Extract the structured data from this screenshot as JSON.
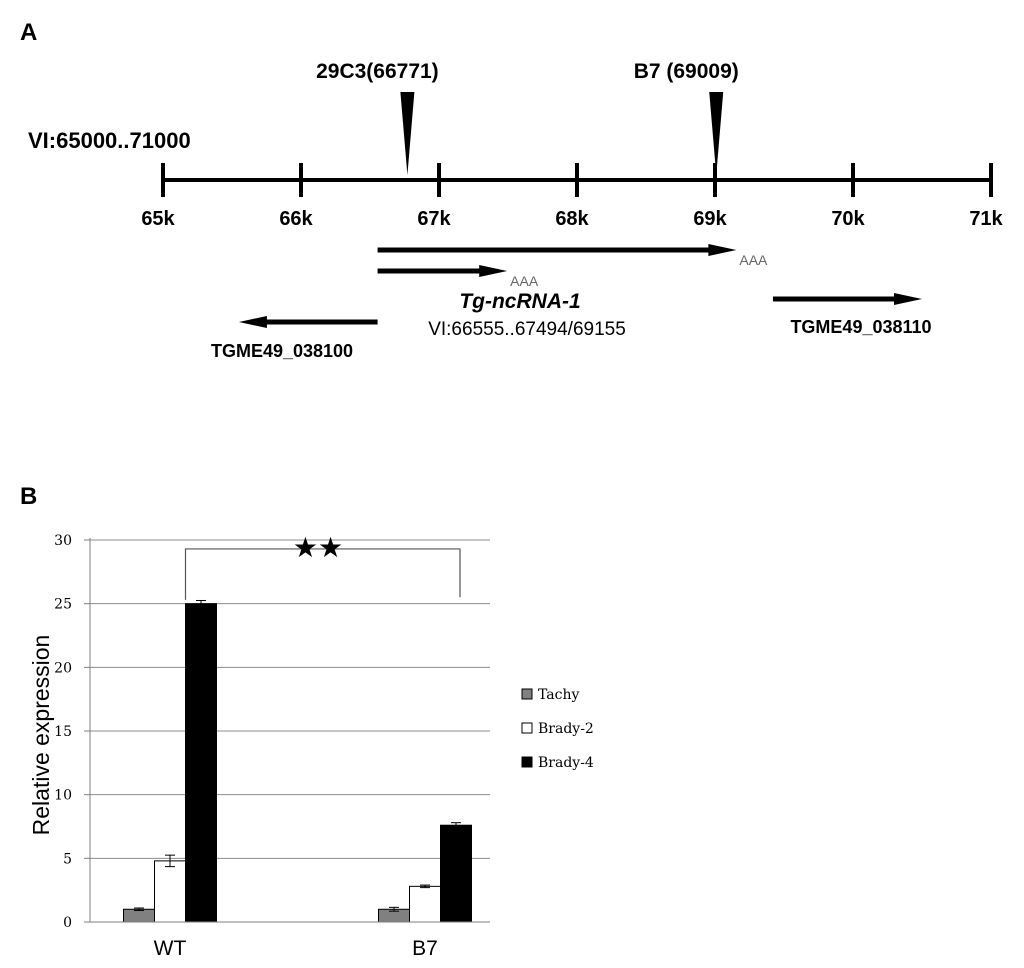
{
  "panel_a": {
    "letter": "A",
    "region_label": "VI:65000..71000",
    "insertions": [
      {
        "label": "29C3(66771)",
        "position": 66771
      },
      {
        "label": "B7 (69009)",
        "position": 69009
      }
    ],
    "axis": {
      "start": 65000,
      "end": 71000,
      "ticks": [
        {
          "value": 65000,
          "label": "65k"
        },
        {
          "value": 66000,
          "label": "66k"
        },
        {
          "value": 67000,
          "label": "67k"
        },
        {
          "value": 68000,
          "label": "68k"
        },
        {
          "value": 69000,
          "label": "69k"
        },
        {
          "value": 70000,
          "label": "70k"
        },
        {
          "value": 71000,
          "label": "71k"
        }
      ]
    },
    "transcripts": [
      {
        "start": 66555,
        "end": 69155,
        "direction": "forward",
        "polyA": "AAA"
      },
      {
        "start": 66555,
        "end": 67494,
        "direction": "forward",
        "polyA": "AAA"
      }
    ],
    "genes": [
      {
        "name": "Tg-ncRNA-1",
        "coords": "VI:66555..67494/69155"
      },
      {
        "name": "TGME49_038100",
        "start": 65550,
        "end": 66555,
        "direction": "reverse"
      },
      {
        "name": "TGME49_038110",
        "start": 69420,
        "end": 70500,
        "direction": "forward"
      }
    ]
  },
  "chart_data": {
    "type": "bar",
    "panel_letter": "B",
    "categories": [
      "WT",
      "B7"
    ],
    "series": [
      {
        "name": "Tachy",
        "values": [
          1.0,
          1.0
        ],
        "errors": [
          0.1,
          0.15
        ],
        "color": "#808080"
      },
      {
        "name": "Brady-2",
        "values": [
          4.8,
          2.8
        ],
        "errors": [
          0.45,
          0.1
        ],
        "color": "#ffffff"
      },
      {
        "name": "Brady-4",
        "values": [
          25.0,
          7.6
        ],
        "errors": [
          0.25,
          0.2
        ],
        "color": "#000000"
      }
    ],
    "ylabel": "Relative  expression",
    "xlabel": "",
    "ylim": [
      0,
      30
    ],
    "yticks": [
      0,
      5,
      10,
      15,
      20,
      25,
      30
    ],
    "grid": true,
    "legend_position": "right",
    "significance": {
      "label": "★★",
      "between": [
        "WT",
        "B7"
      ]
    }
  }
}
